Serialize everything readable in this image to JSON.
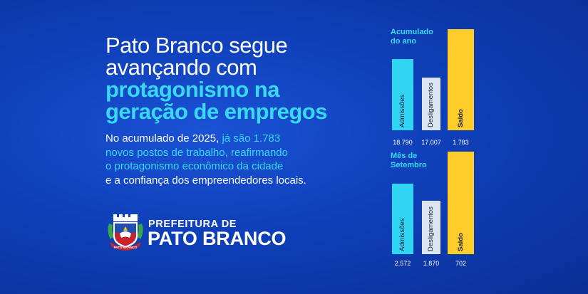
{
  "headline": {
    "line1": "Pato Branco segue",
    "line2": "avançando com",
    "line3": "protagonismo na",
    "line4": "geração de empregos"
  },
  "body": {
    "line1_a": "No acumulado de 2025, ",
    "line1_b": "já são 1.783",
    "line2": "novos postos de trabalho, reafirmando",
    "line3": "o protagonismo econômico da cidade",
    "line4": "e a confiança dos empreendedores locais."
  },
  "brand": {
    "prefix": "PREFEITURA DE",
    "name": "PATO BRANCO",
    "seal_text": "PATO BRANCO"
  },
  "colors": {
    "background": "#0f3fb8",
    "highlight": "#38d9f5",
    "admissoes": "#2fd5f2",
    "desligamentos": "#dbe5f0",
    "saldo": "#ffcd2a"
  },
  "chart_data": [
    {
      "type": "bar",
      "title_line1": "Acumulado",
      "title_line2": "do ano",
      "categories": [
        "Admissões",
        "Desligamentos",
        "Saldo"
      ],
      "values": [
        18790,
        17007,
        1783
      ],
      "value_labels": [
        "18.790",
        "17.007",
        "1.783"
      ],
      "colors": [
        "#2fd5f2",
        "#dbe5f0",
        "#ffcd2a"
      ]
    },
    {
      "type": "bar",
      "title_line1": "Mês de",
      "title_line2": "Setembro",
      "categories": [
        "Admissões",
        "Desligamentos",
        "Saldo"
      ],
      "values": [
        2572,
        1870,
        702
      ],
      "value_labels": [
        "2.572",
        "1.870",
        "702"
      ],
      "colors": [
        "#2fd5f2",
        "#dbe5f0",
        "#ffcd2a"
      ]
    }
  ]
}
